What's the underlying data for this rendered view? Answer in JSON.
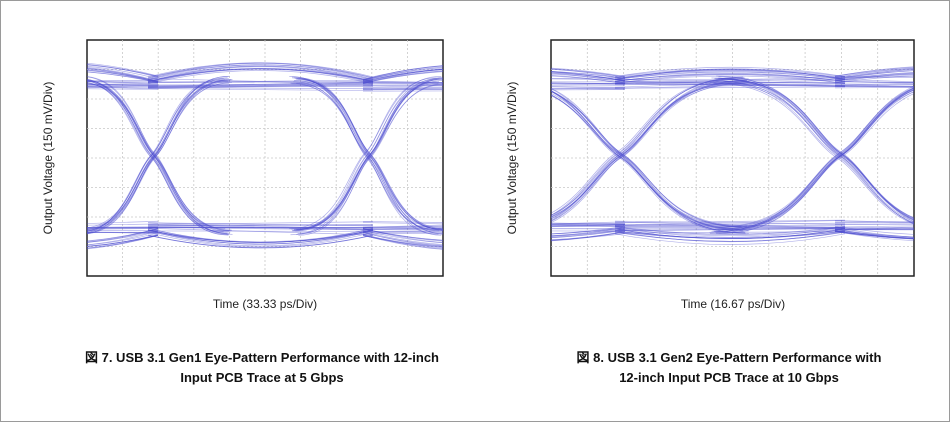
{
  "figures": [
    {
      "y_label": "Output Voltage (150 mV/Div)",
      "x_label": "Time (33.33 ps/Div)",
      "caption": [
        "図 7. USB 3.1 Gen1 Eye-Pattern Performance with 12-inch",
        "Input PCB Trace at 5 Gbps"
      ]
    },
    {
      "y_label": "Output Voltage (150 mV/Div)",
      "x_label": "Time (16.67 ps/Div)",
      "caption": [
        "図 8. USB 3.1 Gen2 Eye-Pattern Performance with",
        "12-inch Input PCB Trace at 10 Gbps"
      ]
    }
  ]
}
